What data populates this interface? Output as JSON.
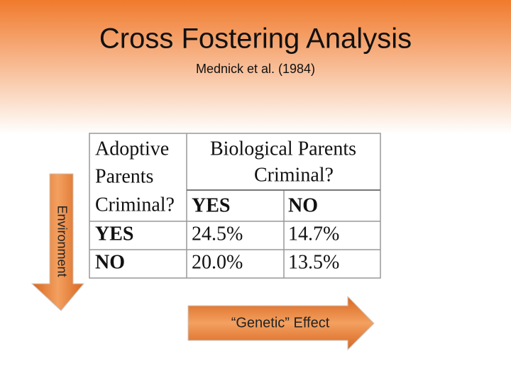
{
  "header": {
    "title": "Cross Fostering Analysis",
    "subtitle": "Mednick et al. (1984)"
  },
  "table": {
    "row_header": [
      "Adoptive",
      "Parents",
      "Criminal?"
    ],
    "column_header": [
      "Biological Parents",
      "Criminal?"
    ],
    "columns": [
      "YES",
      "NO"
    ],
    "rows": [
      [
        "YES",
        "24.5%",
        "14.7%"
      ],
      [
        "NO",
        "20.0%",
        "13.5%"
      ]
    ]
  },
  "arrows": {
    "vertical": "Environment",
    "horizontal": "“Genetic” Effect"
  }
}
